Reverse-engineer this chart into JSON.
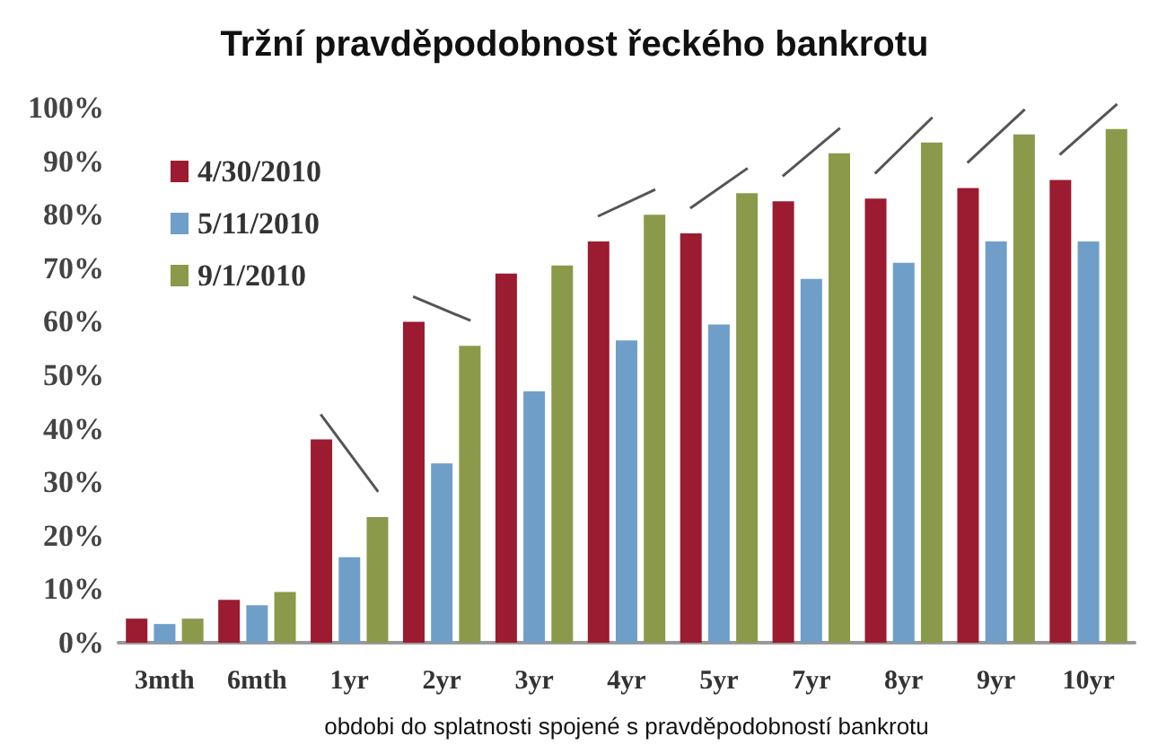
{
  "chart_data": {
    "type": "bar",
    "title": "Tržní pravděpodobnost řeckého bankrotu",
    "xlabel": "obdobi do splatnosti spojené s pravděpodobností bankrotu",
    "categories": [
      "3mth",
      "6mth",
      "1yr",
      "2yr",
      "3yr",
      "4yr",
      "5yr",
      "7yr",
      "8yr",
      "9yr",
      "10yr"
    ],
    "series": [
      {
        "name": "4/30/2010",
        "color": "#9b1b30",
        "values": [
          4.5,
          8,
          38,
          60,
          69,
          75,
          76.5,
          82.5,
          83,
          85,
          86.5
        ]
      },
      {
        "name": "5/11/2010",
        "color": "#6f9fc8",
        "values": [
          3.5,
          7,
          16,
          33.5,
          47,
          56.5,
          59.5,
          68,
          71,
          75,
          75
        ]
      },
      {
        "name": "9/1/2010",
        "color": "#8a9a4a",
        "values": [
          4.5,
          9.5,
          23.5,
          55.5,
          70.5,
          80,
          84,
          91.5,
          93.5,
          95,
          96
        ]
      }
    ],
    "ylim": [
      0,
      100
    ],
    "yticks": [
      {
        "value": 0,
        "label": "0%"
      },
      {
        "value": 10,
        "label": "10%"
      },
      {
        "value": 20,
        "label": "20%"
      },
      {
        "value": 30,
        "label": "30%"
      },
      {
        "value": 40,
        "label": "40%"
      },
      {
        "value": 50,
        "label": "50%"
      },
      {
        "value": 60,
        "label": "60%"
      },
      {
        "value": 70,
        "label": "70%"
      },
      {
        "value": 80,
        "label": "80%"
      },
      {
        "value": 90,
        "label": "90%"
      },
      {
        "value": 100,
        "label": "100%"
      }
    ],
    "grid": false,
    "legend": "top left"
  }
}
